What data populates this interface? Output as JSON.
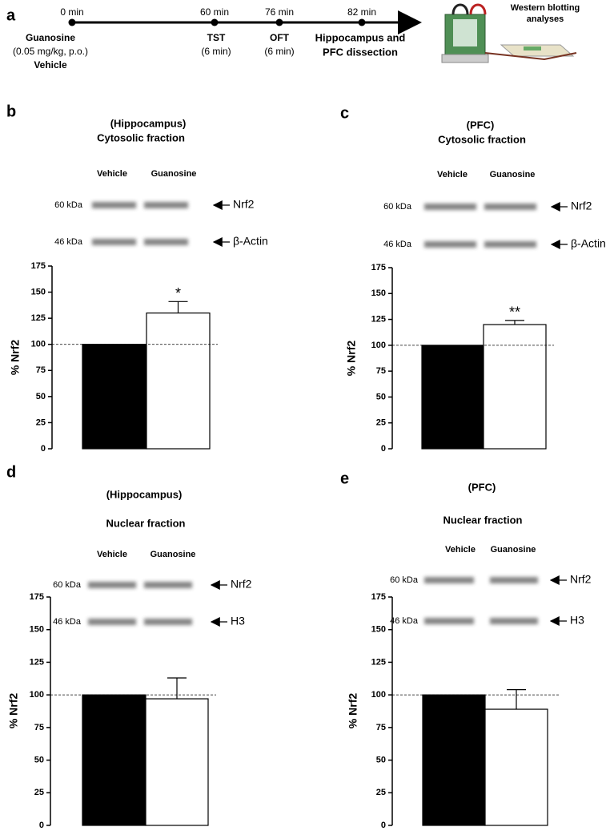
{
  "panel_labels": [
    "a",
    "b",
    "c",
    "d",
    "e"
  ],
  "timeline": {
    "events": [
      {
        "time": "0 min",
        "lines": [
          "Guanosine",
          "(0.05 mg/kg, p.o.)",
          "Vehicle"
        ]
      },
      {
        "time": "60 min",
        "lines": [
          "TST",
          "(6 min)"
        ]
      },
      {
        "time": "76 min",
        "lines": [
          "OFT",
          "(6 min)"
        ]
      },
      {
        "time": "82 min",
        "lines": [
          "Hippocampus and",
          "PFC dissection"
        ]
      }
    ],
    "output": [
      "Western blotting",
      "analyses"
    ]
  },
  "chart_data": [
    {
      "type": "bar",
      "region": "(Hippocampus)",
      "fraction": "Cytosolic fraction",
      "categories": [
        "Vehicle",
        "Guanosine"
      ],
      "blots": [
        {
          "size": "60 kDa",
          "protein": "Nrf2"
        },
        {
          "size": "46 kDa",
          "protein": "β-Actin"
        }
      ],
      "ylabel": "% Nrf2",
      "values": [
        100,
        130
      ],
      "errors": [
        null,
        11
      ],
      "significance": [
        null,
        "*"
      ],
      "colors": [
        "#000000",
        "#ffffff"
      ],
      "reference_line": 100,
      "ylim": [
        0,
        175
      ],
      "yticks": [
        0,
        25,
        50,
        75,
        100,
        125,
        150,
        175
      ]
    },
    {
      "type": "bar",
      "region": "(PFC)",
      "fraction": "Cytosolic fraction",
      "categories": [
        "Vehicle",
        "Guanosine"
      ],
      "blots": [
        {
          "size": "60 kDa",
          "protein": "Nrf2"
        },
        {
          "size": "46 kDa",
          "protein": "β-Actin"
        }
      ],
      "ylabel": "% Nrf2",
      "values": [
        100,
        120
      ],
      "errors": [
        null,
        4
      ],
      "significance": [
        null,
        "**"
      ],
      "colors": [
        "#000000",
        "#ffffff"
      ],
      "reference_line": 100,
      "ylim": [
        0,
        175
      ],
      "yticks": [
        0,
        25,
        50,
        75,
        100,
        125,
        150,
        175
      ]
    },
    {
      "type": "bar",
      "region": "(Hippocampus)",
      "fraction": "Nuclear fraction",
      "categories": [
        "Vehicle",
        "Guanosine"
      ],
      "blots": [
        {
          "size": "60 kDa",
          "protein": "Nrf2"
        },
        {
          "size": "46 kDa",
          "protein": "H3"
        }
      ],
      "ylabel": "% Nrf2",
      "values": [
        100,
        97
      ],
      "errors": [
        null,
        16
      ],
      "significance": [
        null,
        null
      ],
      "colors": [
        "#000000",
        "#ffffff"
      ],
      "reference_line": 100,
      "ylim": [
        0,
        175
      ],
      "yticks": [
        0,
        25,
        50,
        75,
        100,
        125,
        150,
        175
      ]
    },
    {
      "type": "bar",
      "region": "(PFC)",
      "fraction": "Nuclear fraction",
      "categories": [
        "Vehicle",
        "Guanosine"
      ],
      "blots": [
        {
          "size": "60 kDa",
          "protein": "Nrf2"
        },
        {
          "size": "46 kDa",
          "protein": "H3"
        }
      ],
      "ylabel": "% Nrf2",
      "values": [
        100,
        89
      ],
      "errors": [
        null,
        15
      ],
      "significance": [
        null,
        null
      ],
      "colors": [
        "#000000",
        "#ffffff"
      ],
      "reference_line": 100,
      "ylim": [
        0,
        175
      ],
      "yticks": [
        0,
        25,
        50,
        75,
        100,
        125,
        150,
        175
      ]
    }
  ]
}
